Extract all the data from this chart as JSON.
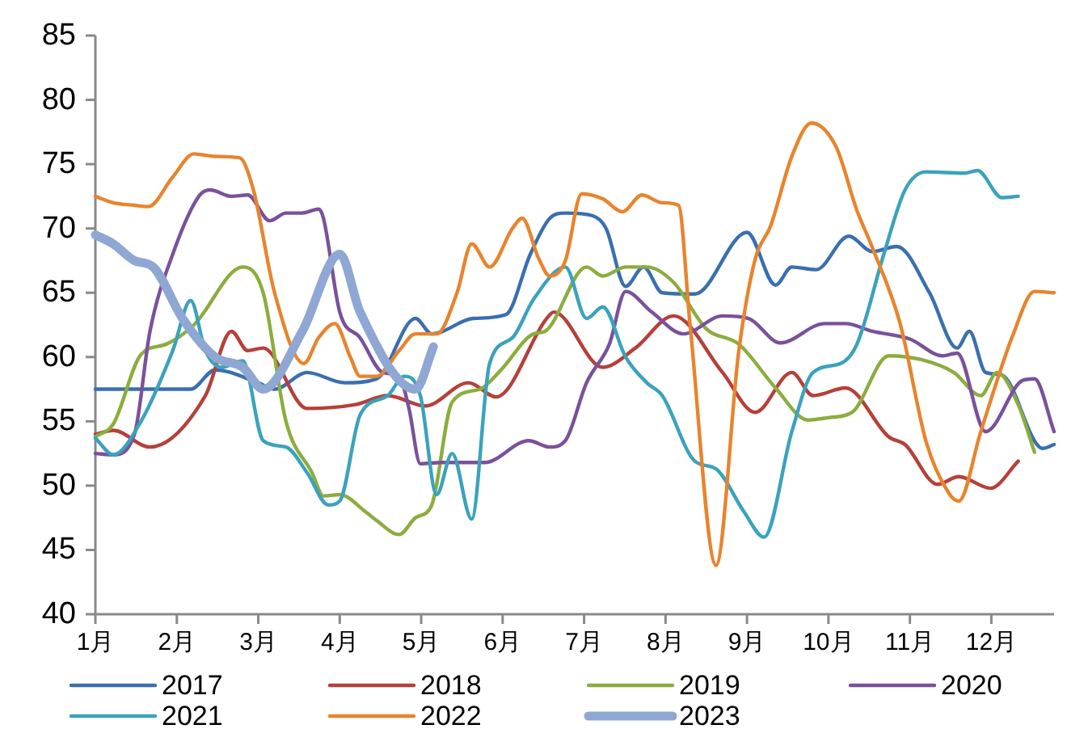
{
  "chart_data": {
    "type": "line",
    "xlim": [
      1,
      12.77
    ],
    "xticks": [
      {
        "value": 1,
        "label": "1月"
      },
      {
        "value": 2,
        "label": "2月"
      },
      {
        "value": 3,
        "label": "3月"
      },
      {
        "value": 4,
        "label": "4月"
      },
      {
        "value": 5,
        "label": "5月"
      },
      {
        "value": 6,
        "label": "6月"
      },
      {
        "value": 7,
        "label": "7月"
      },
      {
        "value": 8,
        "label": "8月"
      },
      {
        "value": 9,
        "label": "9月"
      },
      {
        "value": 10,
        "label": "10月"
      },
      {
        "value": 11,
        "label": "11月"
      },
      {
        "value": 12,
        "label": "12月"
      }
    ],
    "ylim": [
      40,
      85
    ],
    "yticks": [
      40,
      45,
      50,
      55,
      60,
      65,
      70,
      75,
      80,
      85
    ],
    "grid": false,
    "legend": "bottom",
    "marker": "none",
    "line_style": "solid",
    "series": [
      {
        "name": "2017",
        "color": "#3a6fb0",
        "x": [
          1,
          2.17,
          2.47,
          3.0,
          3.2,
          3.6,
          4.06,
          4.45,
          4.93,
          5.13,
          5.64,
          6.04,
          6.34,
          6.58,
          6.77,
          7.1,
          7.27,
          7.51,
          7.73,
          7.96,
          8.36,
          9.0,
          9.35,
          9.55,
          9.85,
          10.25,
          10.54,
          10.84,
          11.24,
          11.58,
          11.73,
          11.93,
          12.13,
          12.63,
          12.77
        ],
        "values": [
          57.5,
          57.5,
          59,
          58,
          57.5,
          58.8,
          58,
          58.3,
          63,
          61.8,
          63,
          63.3,
          68,
          70.8,
          71.2,
          71,
          70,
          65.5,
          67,
          65,
          64.9,
          69.7,
          65.6,
          67,
          66.8,
          69.4,
          68.2,
          68.6,
          65,
          60.7,
          62,
          58.8,
          58.6,
          52.9,
          53.2
        ]
      },
      {
        "name": "2018",
        "color": "#b5403a",
        "x": [
          1,
          1.22,
          1.67,
          2.35,
          2.67,
          2.87,
          3.06,
          3.6,
          4.19,
          4.59,
          5.05,
          5.58,
          5.92,
          6.54,
          6.63,
          7.23,
          7.63,
          8.1,
          8.7,
          9.1,
          9.55,
          9.81,
          10.21,
          10.74,
          10.94,
          11.34,
          11.6,
          11.99,
          12.33
        ],
        "values": [
          54,
          54.3,
          53,
          57,
          62,
          60.5,
          60.7,
          56,
          56.3,
          57,
          56.2,
          58,
          56.9,
          63,
          63.5,
          59.2,
          60.7,
          63.2,
          58.8,
          55.7,
          58.8,
          57,
          57.6,
          53.8,
          53.2,
          50.1,
          50.7,
          49.8,
          51.9
        ]
      },
      {
        "name": "2019",
        "color": "#8cad3e",
        "x": [
          1,
          1.22,
          1.56,
          1.87,
          2.21,
          2.81,
          3.06,
          3.34,
          3.66,
          3.8,
          4.0,
          4.33,
          4.45,
          4.73,
          4.93,
          5.13,
          5.38,
          5.72,
          5.98,
          6.38,
          6.52,
          7.03,
          7.23,
          7.51,
          7.77,
          8.1,
          8.5,
          8.9,
          9.35,
          9.75,
          10.01,
          10.29,
          10.74,
          11.14,
          11.54,
          11.87,
          12.07,
          12.33,
          12.53
        ],
        "values": [
          53.8,
          54.8,
          60.2,
          61,
          62.5,
          67,
          65,
          55,
          51,
          49.2,
          49.3,
          47.9,
          47.3,
          46.2,
          47.5,
          48.5,
          56.5,
          57.5,
          59,
          61.8,
          62,
          67,
          66.3,
          67,
          67,
          65.8,
          62.2,
          61,
          57.6,
          55.1,
          55.3,
          55.7,
          60.1,
          59.8,
          58.8,
          57,
          58.8,
          56.3,
          52.6
        ]
      },
      {
        "name": "2020",
        "color": "#7a519b",
        "x": [
          1,
          1.22,
          1.48,
          1.67,
          1.95,
          2.27,
          2.41,
          2.67,
          2.87,
          3.14,
          3.34,
          3.54,
          3.74,
          3.8,
          4.0,
          4.25,
          4.53,
          4.73,
          4.85,
          4.99,
          5.25,
          5.78,
          6.32,
          6.58,
          6.77,
          7.03,
          7.31,
          7.51,
          7.83,
          8.22,
          8.7,
          9.02,
          9.41,
          9.95,
          10.21,
          10.54,
          11.0,
          11.4,
          11.58,
          11.93,
          12.39,
          12.53,
          12.77
        ],
        "values": [
          52.5,
          52.4,
          54,
          62,
          68,
          72.5,
          73,
          72.5,
          72.6,
          70.6,
          71.2,
          71.2,
          71.5,
          70.8,
          63.5,
          61.5,
          58.8,
          58.5,
          56,
          51.7,
          51.8,
          51.8,
          53.5,
          53,
          53.5,
          58,
          61,
          65.1,
          63.5,
          61.8,
          63.2,
          63,
          61.1,
          62.6,
          62.6,
          62,
          61.4,
          60.1,
          60.3,
          54.2,
          58.2,
          58.3,
          54.2
        ]
      },
      {
        "name": "2021",
        "color": "#3ba2bc",
        "x": [
          1,
          1.22,
          1.56,
          1.95,
          2.17,
          2.35,
          2.55,
          2.81,
          3.06,
          3.34,
          3.6,
          3.86,
          4.0,
          4.25,
          4.59,
          4.79,
          4.99,
          5.19,
          5.38,
          5.62,
          5.84,
          6.12,
          6.38,
          6.77,
          7.03,
          7.23,
          7.51,
          7.77,
          7.96,
          8.36,
          8.62,
          8.96,
          9.21,
          9.55,
          9.81,
          10.15,
          10.35,
          10.68,
          10.94,
          11.2,
          11.67,
          11.83,
          12.13,
          12.33
        ],
        "values": [
          53.7,
          52.4,
          55,
          60.5,
          64.4,
          60.5,
          59.2,
          59.7,
          53.5,
          53,
          51,
          48.5,
          48.8,
          55.5,
          57,
          58.5,
          57,
          49.3,
          52.5,
          47.4,
          59.5,
          61.5,
          64.5,
          67,
          63,
          63.9,
          60,
          58,
          57,
          51.9,
          51.3,
          48,
          46,
          54.2,
          58.8,
          59.5,
          61,
          68,
          73,
          74.4,
          74.3,
          74.5,
          72.4,
          72.5
        ]
      },
      {
        "name": "2022",
        "color": "#e8842d",
        "x": [
          1,
          1.22,
          1.48,
          1.65,
          1.95,
          2.21,
          2.47,
          2.77,
          2.94,
          3.2,
          3.56,
          3.74,
          3.94,
          4.13,
          4.25,
          4.45,
          4.73,
          4.93,
          5.19,
          5.44,
          5.62,
          5.84,
          6.12,
          6.24,
          6.44,
          6.58,
          6.77,
          6.97,
          7.23,
          7.47,
          7.71,
          7.96,
          8.16,
          8.3,
          8.62,
          8.9,
          9.1,
          9.29,
          9.55,
          9.79,
          10.09,
          10.35,
          10.54,
          10.88,
          11.2,
          11.48,
          11.6,
          11.87,
          12.27,
          12.53,
          12.77
        ],
        "values": [
          72.5,
          72,
          71.8,
          71.7,
          74,
          75.8,
          75.6,
          75.5,
          73,
          65,
          59.5,
          61.5,
          62.6,
          60,
          58.5,
          58.5,
          60.5,
          61.8,
          61.8,
          65,
          68.8,
          67,
          70,
          70.8,
          67.7,
          66.3,
          67.5,
          72.7,
          72.3,
          71.3,
          72.6,
          72,
          71.8,
          62.6,
          43.8,
          60.5,
          67.6,
          70.2,
          75.6,
          78.2,
          76.4,
          71.4,
          68.5,
          62.6,
          53.4,
          49.4,
          48.8,
          54.2,
          61.8,
          65.1,
          65
        ]
      },
      {
        "name": "2023",
        "color": "#8ea7d3",
        "x": [
          1,
          1.22,
          1.48,
          1.71,
          2.07,
          2.47,
          2.81,
          3.06,
          3.54,
          4.0,
          4.25,
          4.93,
          5.15
        ],
        "values": [
          69.5,
          68.8,
          67.5,
          67,
          63,
          60,
          59.2,
          57.5,
          62,
          68,
          63.5,
          57.5,
          60.8
        ]
      }
    ]
  }
}
